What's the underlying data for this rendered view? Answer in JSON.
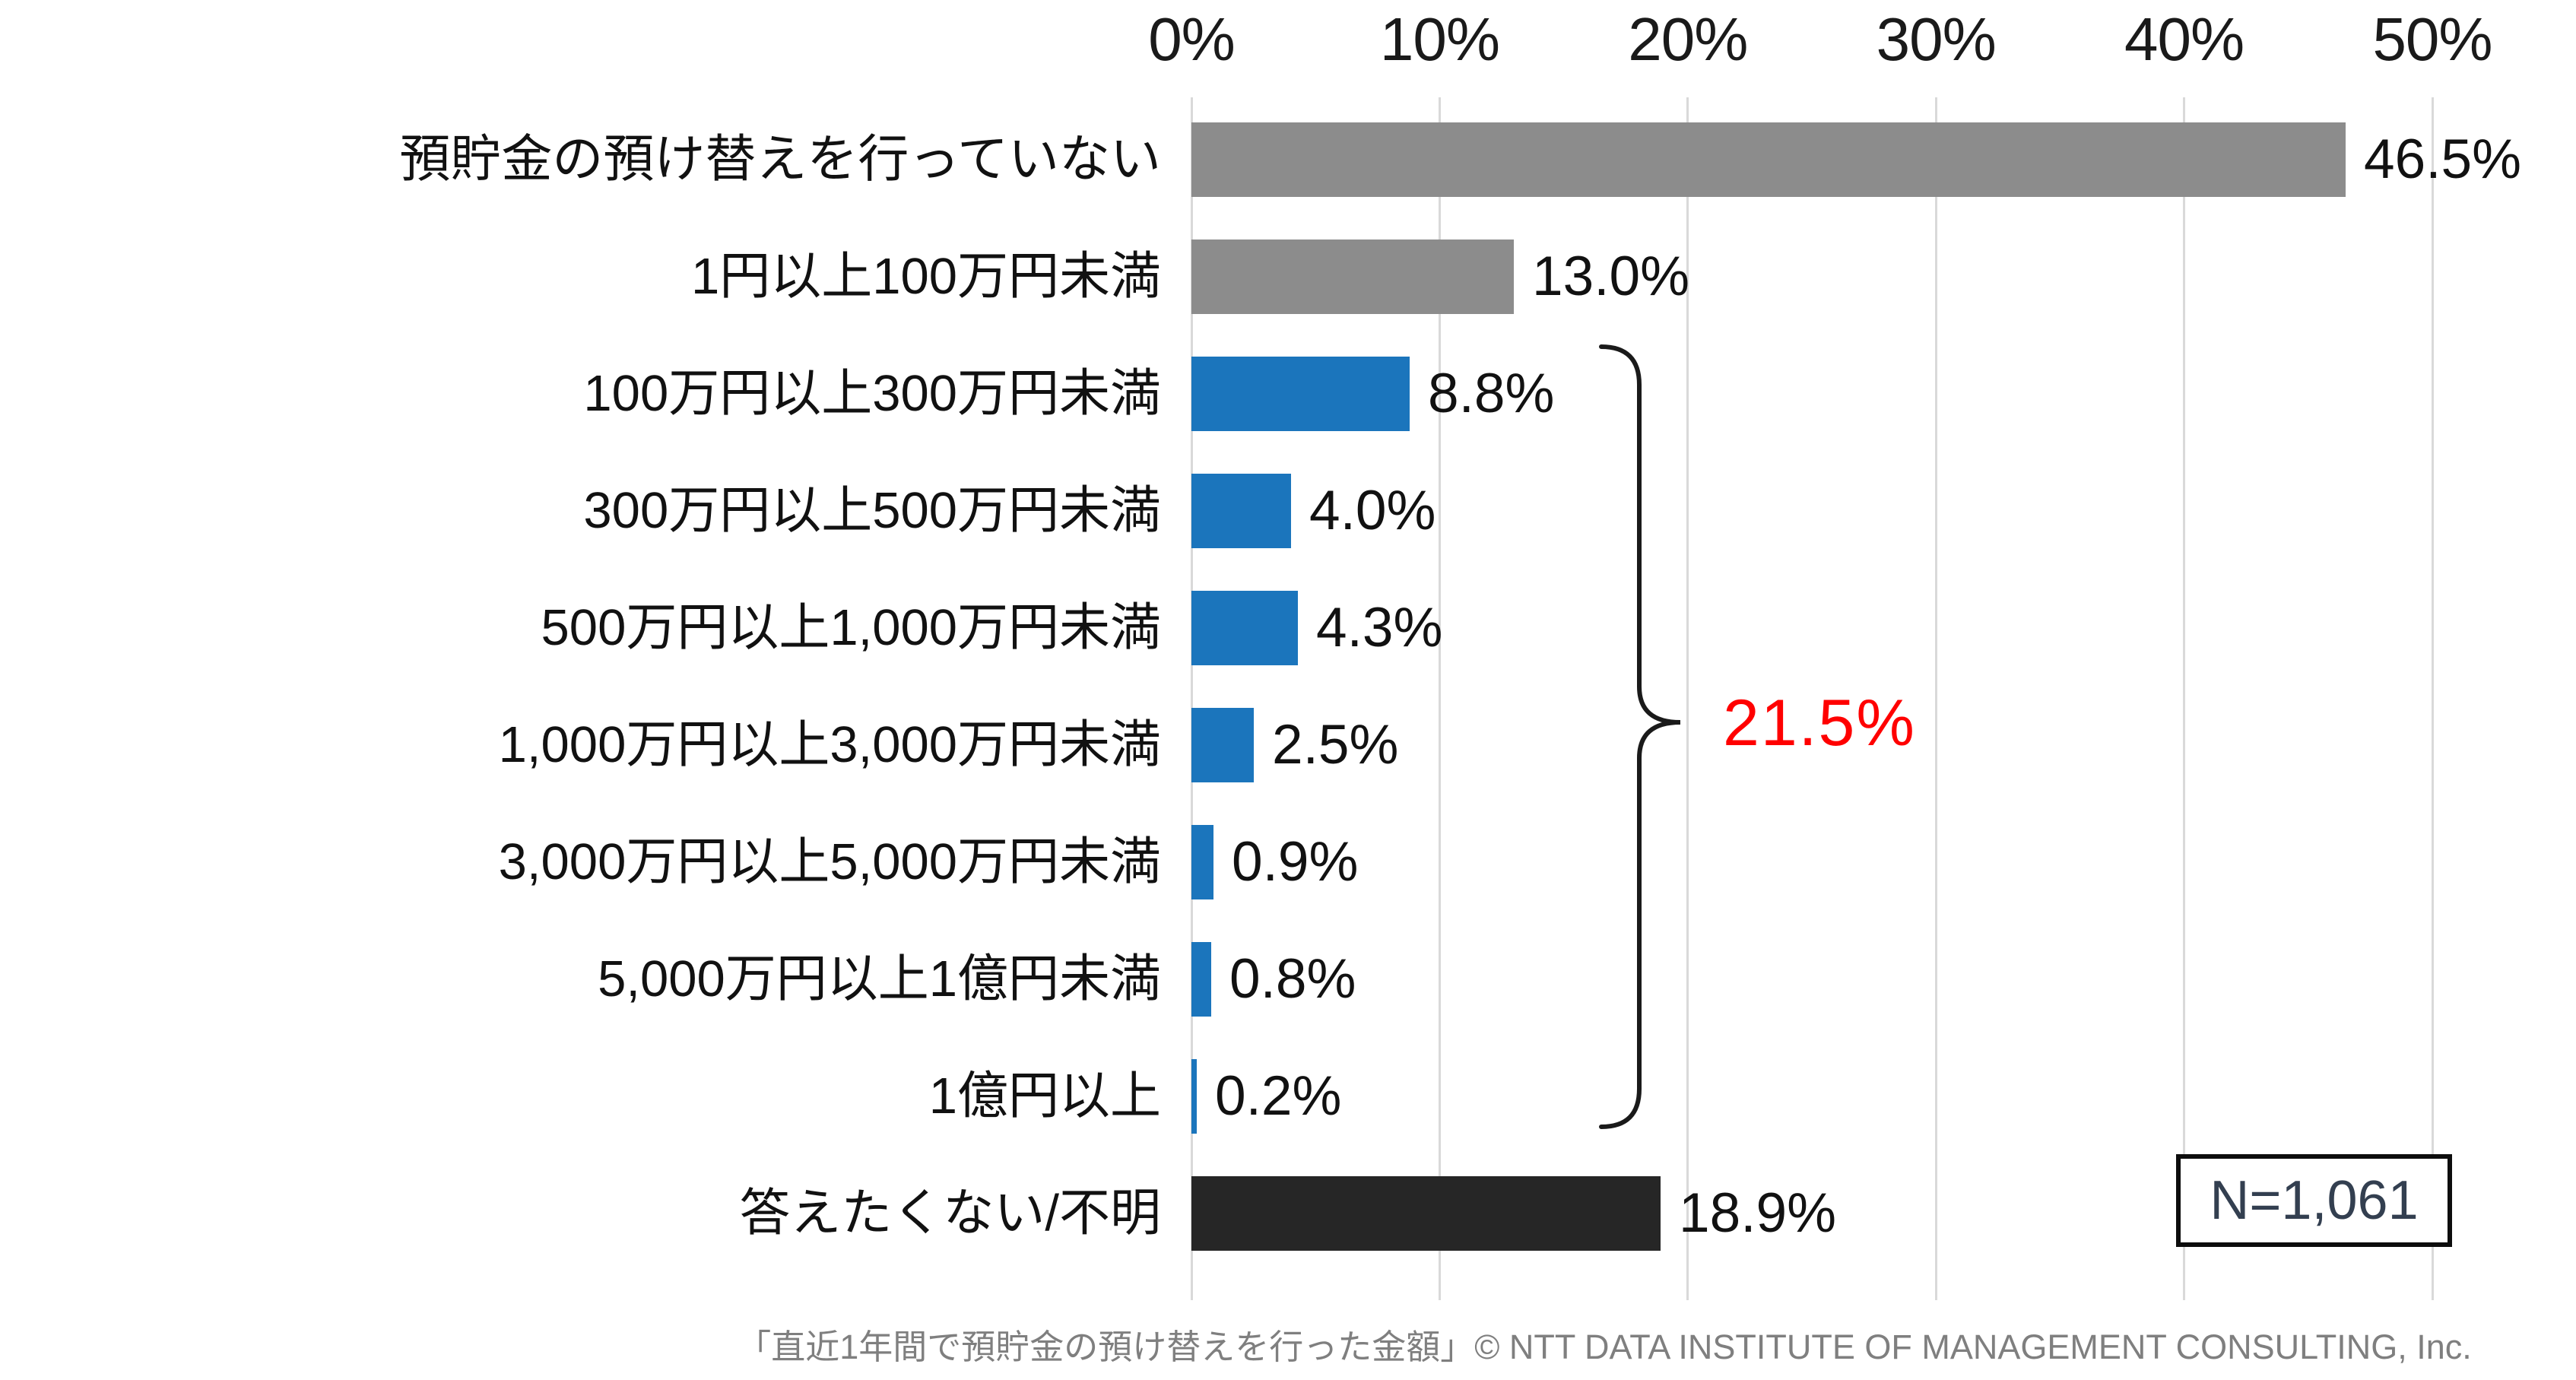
{
  "chart_data": {
    "type": "bar",
    "orientation": "horizontal",
    "unit": "%",
    "title": "",
    "xlabel": "",
    "ylabel": "",
    "xlim": [
      0,
      50
    ],
    "x_ticks": [
      "0%",
      "10%",
      "20%",
      "30%",
      "40%",
      "50%"
    ],
    "x_tick_values": [
      0,
      10,
      20,
      30,
      40,
      50
    ],
    "grid": "vertical",
    "categories": [
      "預貯金の預け替えを行っていない",
      "1円以上100万円未満",
      "100万円以上300万円未満",
      "300万円以上500万円未満",
      "500万円以上1,000万円未満",
      "1,000万円以上3,000万円未満",
      "3,000万円以上5,000万円未満",
      "5,000万円以上1億円未満",
      "1億円以上",
      "答えたくない/不明"
    ],
    "values": [
      46.5,
      13.0,
      8.8,
      4.0,
      4.3,
      2.5,
      0.9,
      0.8,
      0.2,
      18.9
    ],
    "value_labels": [
      "46.5%",
      "13.0%",
      "8.8%",
      "4.0%",
      "4.3%",
      "2.5%",
      "0.9%",
      "0.8%",
      "0.2%",
      "18.9%"
    ],
    "bar_color_keys": [
      "gray",
      "gray",
      "blue",
      "blue",
      "blue",
      "blue",
      "blue",
      "blue",
      "blue",
      "dark"
    ],
    "grouped_annotation": {
      "label": "21.5%",
      "grouped_rows_first_index": 2,
      "grouped_rows_last_index": 8,
      "color": "#FF0000"
    }
  },
  "colors": {
    "gray": "#8C8C8C",
    "blue": "#1B75BC",
    "dark": "#262626",
    "gridline": "#D9D9D9",
    "red": "#FF0000",
    "brace": "#1A1A1A",
    "sample_text": "#333F50",
    "caption_text": "#7F7F7F"
  },
  "annotations": {
    "group_total": "21.5%",
    "sample_size": "N=1,061"
  },
  "caption": "「直近1年間で預貯金の預け替えを行った金額」© NTT DATA INSTITUTE OF MANAGEMENT CONSULTING, Inc."
}
